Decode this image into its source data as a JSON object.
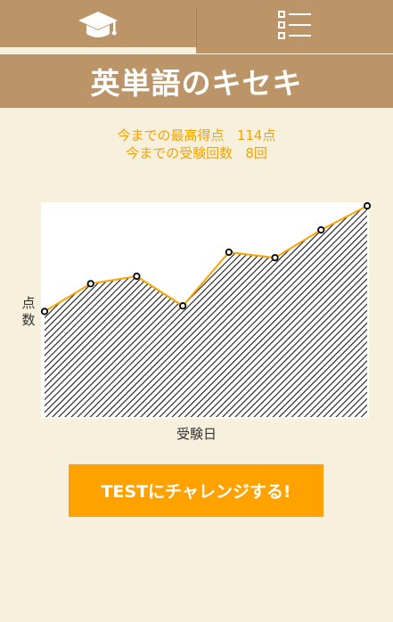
{
  "tabs": [
    {
      "icon": "graduation-cap-icon"
    },
    {
      "icon": "list-icon"
    }
  ],
  "header": {
    "title": "英単語のキセキ"
  },
  "stats": {
    "best_label": "今までの最高得点",
    "best_value": "114点",
    "count_label": "今までの受験回数",
    "count_value": "8回"
  },
  "chart_data": {
    "type": "area",
    "title": "",
    "xlabel": "受験日",
    "ylabel": "点数",
    "x": [
      1,
      2,
      3,
      4,
      5,
      6,
      7,
      8
    ],
    "series": [
      {
        "values": [
          57,
          72,
          76,
          60,
          89,
          86,
          101,
          114
        ]
      }
    ],
    "ylim": [
      0,
      114
    ],
    "grid": false,
    "line_color": "#ffa200",
    "fill": "diagonal-hatch"
  },
  "cta": {
    "label": "TESTにチャレンジする!"
  },
  "colors": {
    "bar": "#bb9468",
    "background": "#f6f0dc",
    "accent": "#ffa200",
    "stats_text": "#f5a300"
  }
}
